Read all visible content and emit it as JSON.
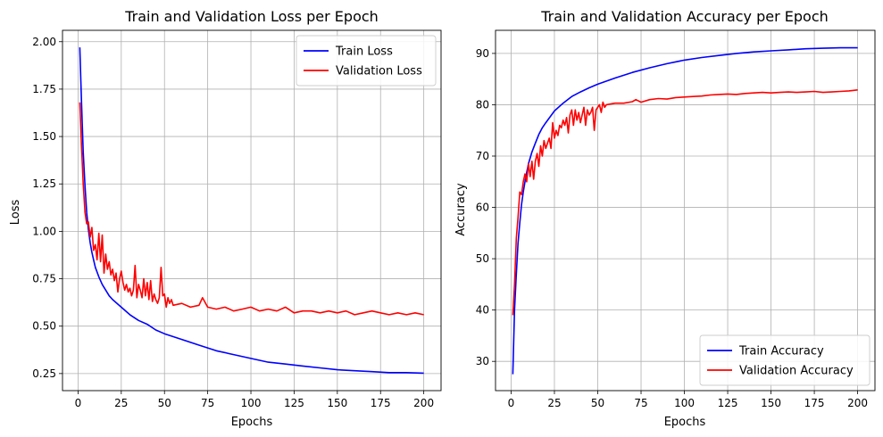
{
  "colors": {
    "train": "#0000ff",
    "validation": "#ff0000",
    "grid": "#b0b0b0"
  },
  "chart_data": [
    {
      "type": "line",
      "title": "Train and Validation Loss per Epoch",
      "xlabel": "Epochs",
      "ylabel": "Loss",
      "xlim": [
        -9,
        210
      ],
      "ylim": [
        0.16,
        2.06
      ],
      "xticks": [
        0,
        25,
        50,
        75,
        100,
        125,
        150,
        175,
        200
      ],
      "yticks": [
        0.25,
        0.5,
        0.75,
        1.0,
        1.25,
        1.5,
        1.75,
        2.0
      ],
      "ytick_labels": [
        "0.25",
        "0.50",
        "0.75",
        "1.00",
        "1.25",
        "1.50",
        "1.75",
        "2.00"
      ],
      "grid": true,
      "legend_position": "top-right",
      "series": [
        {
          "name": "Train Loss",
          "color": "#0000ff",
          "x": [
            1,
            2,
            3,
            4,
            5,
            6,
            7,
            8,
            9,
            10,
            12,
            14,
            16,
            18,
            20,
            25,
            30,
            35,
            40,
            45,
            50,
            60,
            70,
            80,
            90,
            100,
            110,
            120,
            130,
            140,
            150,
            160,
            170,
            180,
            190,
            200
          ],
          "y": [
            1.97,
            1.68,
            1.42,
            1.24,
            1.1,
            1.01,
            0.94,
            0.89,
            0.85,
            0.81,
            0.76,
            0.72,
            0.69,
            0.66,
            0.64,
            0.6,
            0.56,
            0.53,
            0.51,
            0.48,
            0.46,
            0.43,
            0.4,
            0.37,
            0.35,
            0.33,
            0.31,
            0.3,
            0.29,
            0.28,
            0.27,
            0.265,
            0.26,
            0.255,
            0.255,
            0.252
          ]
        },
        {
          "name": "Validation Loss",
          "color": "#ff0000",
          "x": [
            1,
            2,
            3,
            4,
            5,
            6,
            7,
            8,
            9,
            10,
            11,
            12,
            13,
            14,
            15,
            16,
            17,
            18,
            19,
            20,
            21,
            22,
            23,
            24,
            25,
            26,
            27,
            28,
            29,
            30,
            31,
            32,
            33,
            34,
            35,
            36,
            37,
            38,
            39,
            40,
            41,
            42,
            43,
            44,
            45,
            46,
            47,
            48,
            49,
            50,
            51,
            52,
            53,
            54,
            55,
            60,
            65,
            70,
            72,
            75,
            80,
            85,
            90,
            95,
            100,
            105,
            110,
            115,
            120,
            125,
            130,
            135,
            140,
            145,
            150,
            155,
            160,
            165,
            170,
            175,
            180,
            185,
            190,
            195,
            200
          ],
          "y": [
            1.68,
            1.45,
            1.25,
            1.1,
            1.04,
            1.05,
            0.97,
            1.02,
            0.9,
            0.93,
            0.85,
            0.99,
            0.84,
            0.98,
            0.78,
            0.88,
            0.8,
            0.84,
            0.77,
            0.8,
            0.74,
            0.78,
            0.68,
            0.75,
            0.79,
            0.73,
            0.69,
            0.72,
            0.68,
            0.7,
            0.66,
            0.69,
            0.82,
            0.65,
            0.72,
            0.69,
            0.65,
            0.75,
            0.66,
            0.73,
            0.64,
            0.74,
            0.63,
            0.67,
            0.64,
            0.62,
            0.65,
            0.81,
            0.66,
            0.67,
            0.6,
            0.65,
            0.62,
            0.64,
            0.61,
            0.62,
            0.6,
            0.61,
            0.65,
            0.6,
            0.59,
            0.6,
            0.58,
            0.59,
            0.6,
            0.58,
            0.59,
            0.58,
            0.6,
            0.57,
            0.58,
            0.58,
            0.57,
            0.58,
            0.57,
            0.58,
            0.56,
            0.57,
            0.58,
            0.57,
            0.56,
            0.57,
            0.56,
            0.57,
            0.56
          ]
        }
      ]
    },
    {
      "type": "line",
      "title": "Train and Validation Accuracy per Epoch",
      "xlabel": "Epochs",
      "ylabel": "Accuracy",
      "xlim": [
        -9,
        210
      ],
      "ylim": [
        24.3,
        94.5
      ],
      "xticks": [
        0,
        25,
        50,
        75,
        100,
        125,
        150,
        175,
        200
      ],
      "yticks": [
        30,
        40,
        50,
        60,
        70,
        80,
        90
      ],
      "ytick_labels": [
        "30",
        "40",
        "50",
        "60",
        "70",
        "80",
        "90"
      ],
      "grid": true,
      "legend_position": "bottom-right",
      "series": [
        {
          "name": "Train Accuracy",
          "color": "#0000ff",
          "x": [
            1,
            2,
            3,
            4,
            5,
            6,
            7,
            8,
            9,
            10,
            12,
            14,
            16,
            18,
            20,
            25,
            30,
            35,
            40,
            45,
            50,
            60,
            70,
            80,
            90,
            100,
            110,
            120,
            130,
            140,
            150,
            160,
            170,
            180,
            190,
            200
          ],
          "y": [
            27.5,
            40.0,
            47.0,
            53.0,
            57.0,
            60.5,
            63.0,
            65.0,
            66.8,
            68.5,
            70.8,
            72.5,
            74.2,
            75.5,
            76.5,
            78.8,
            80.3,
            81.6,
            82.5,
            83.3,
            84.0,
            85.2,
            86.3,
            87.2,
            88.0,
            88.7,
            89.2,
            89.6,
            90.0,
            90.3,
            90.5,
            90.7,
            90.9,
            91.0,
            91.1,
            91.1
          ]
        },
        {
          "name": "Validation Accuracy",
          "color": "#ff0000",
          "x": [
            1,
            2,
            3,
            4,
            5,
            6,
            7,
            8,
            9,
            10,
            11,
            12,
            13,
            14,
            15,
            16,
            17,
            18,
            19,
            20,
            21,
            22,
            23,
            24,
            25,
            26,
            27,
            28,
            29,
            30,
            31,
            32,
            33,
            34,
            35,
            36,
            37,
            38,
            39,
            40,
            41,
            42,
            43,
            44,
            45,
            46,
            47,
            48,
            49,
            50,
            51,
            52,
            53,
            54,
            55,
            60,
            65,
            70,
            72,
            75,
            80,
            85,
            90,
            95,
            100,
            105,
            110,
            115,
            120,
            125,
            130,
            135,
            140,
            145,
            150,
            155,
            160,
            165,
            170,
            175,
            180,
            185,
            190,
            195,
            200
          ],
          "y": [
            39.0,
            45.0,
            54.0,
            58.0,
            63.0,
            62.5,
            65.0,
            66.5,
            65.0,
            68.5,
            66.0,
            69.0,
            65.5,
            69.0,
            70.5,
            68.0,
            72.0,
            70.0,
            73.0,
            71.5,
            72.5,
            73.5,
            71.5,
            76.5,
            73.5,
            75.0,
            74.0,
            76.0,
            75.5,
            77.0,
            76.0,
            77.5,
            74.5,
            78.0,
            79.0,
            76.0,
            79.0,
            77.0,
            78.5,
            76.5,
            78.0,
            79.5,
            76.0,
            79.0,
            78.0,
            78.5,
            79.5,
            75.0,
            79.0,
            79.5,
            80.0,
            78.5,
            80.5,
            79.5,
            80.0,
            80.3,
            80.3,
            80.6,
            81.0,
            80.5,
            81.0,
            81.2,
            81.1,
            81.4,
            81.5,
            81.6,
            81.7,
            81.9,
            82.0,
            82.1,
            82.0,
            82.2,
            82.3,
            82.4,
            82.3,
            82.4,
            82.5,
            82.4,
            82.5,
            82.6,
            82.4,
            82.5,
            82.6,
            82.7,
            82.9
          ]
        }
      ]
    }
  ]
}
